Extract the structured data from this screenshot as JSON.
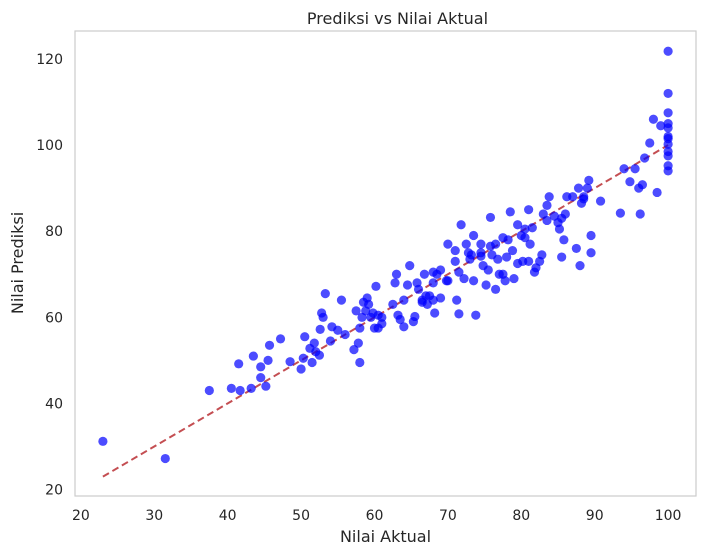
{
  "chart_data": {
    "type": "scatter",
    "title": "Prediksi vs Nilai Aktual",
    "xlabel": "Nilai Aktual",
    "ylabel": "Nilai Prediksi",
    "xlim": [
      19.2,
      103.8
    ],
    "ylim": [
      18.5,
      126.5
    ],
    "xticks": [
      20,
      30,
      40,
      50,
      60,
      70,
      80,
      90,
      100
    ],
    "yticks": [
      20,
      40,
      60,
      80,
      100,
      120
    ],
    "grid": false,
    "point_color": "#0000ff",
    "line_color": "#c44e52",
    "reference_line": {
      "x": [
        23,
        100
      ],
      "y": [
        23,
        100
      ],
      "style": "dashed"
    },
    "points": [
      [
        23,
        31.2
      ],
      [
        31.5,
        27.2
      ],
      [
        37.5,
        43
      ],
      [
        40.5,
        43.5
      ],
      [
        41.5,
        49.2
      ],
      [
        41.7,
        43
      ],
      [
        43.2,
        43.5
      ],
      [
        43.5,
        51
      ],
      [
        44.5,
        48.5
      ],
      [
        44.5,
        46
      ],
      [
        45.2,
        44
      ],
      [
        45.5,
        50
      ],
      [
        45.7,
        53.5
      ],
      [
        47.2,
        55
      ],
      [
        48.5,
        49.7
      ],
      [
        50,
        48
      ],
      [
        50.3,
        50.5
      ],
      [
        50.5,
        55.5
      ],
      [
        51.2,
        52.8
      ],
      [
        51.5,
        49.5
      ],
      [
        51.8,
        54
      ],
      [
        52,
        52
      ],
      [
        52.5,
        51.2
      ],
      [
        52.6,
        57.2
      ],
      [
        52.8,
        61
      ],
      [
        53,
        60
      ],
      [
        53.3,
        65.5
      ],
      [
        54,
        54.5
      ],
      [
        54.2,
        57.8
      ],
      [
        55,
        57
      ],
      [
        55.5,
        64
      ],
      [
        56,
        56
      ],
      [
        57.2,
        52.5
      ],
      [
        57.5,
        61.5
      ],
      [
        57.8,
        54
      ],
      [
        58,
        49.5
      ],
      [
        58,
        57.5
      ],
      [
        58.3,
        60
      ],
      [
        58.5,
        63.5
      ],
      [
        58.8,
        61.5
      ],
      [
        59,
        64.5
      ],
      [
        59.2,
        63
      ],
      [
        59.5,
        60
      ],
      [
        59.8,
        61
      ],
      [
        60,
        57.5
      ],
      [
        60.2,
        67.2
      ],
      [
        60.5,
        60.5
      ],
      [
        60.5,
        57.5
      ],
      [
        61,
        58.5
      ],
      [
        61,
        60
      ],
      [
        62.5,
        63
      ],
      [
        62.8,
        68
      ],
      [
        63,
        70
      ],
      [
        63.2,
        60.5
      ],
      [
        63.5,
        59.5
      ],
      [
        64,
        64
      ],
      [
        64,
        57.8
      ],
      [
        64.5,
        67.5
      ],
      [
        64.8,
        72
      ],
      [
        65.3,
        59
      ],
      [
        65.5,
        60.2
      ],
      [
        65.8,
        68
      ],
      [
        66,
        66.5
      ],
      [
        66.5,
        63.5
      ],
      [
        66.5,
        64
      ],
      [
        66.8,
        70
      ],
      [
        67,
        65
      ],
      [
        67.2,
        63
      ],
      [
        67.5,
        65
      ],
      [
        68,
        68
      ],
      [
        68,
        70.5
      ],
      [
        68,
        64
      ],
      [
        68.2,
        61
      ],
      [
        68.5,
        70
      ],
      [
        69,
        71
      ],
      [
        69,
        64.5
      ],
      [
        69.8,
        68.5
      ],
      [
        70,
        77
      ],
      [
        70,
        68.5
      ],
      [
        71,
        73
      ],
      [
        71,
        75.5
      ],
      [
        71.2,
        64
      ],
      [
        71.5,
        60.8
      ],
      [
        71.5,
        70.5
      ],
      [
        71.8,
        81.5
      ],
      [
        72.2,
        69
      ],
      [
        72.5,
        77
      ],
      [
        72.8,
        75
      ],
      [
        73,
        73.5
      ],
      [
        73.2,
        74.5
      ],
      [
        73.5,
        79
      ],
      [
        73.5,
        68.5
      ],
      [
        73.8,
        60.5
      ],
      [
        74.5,
        77
      ],
      [
        74.5,
        74.2
      ],
      [
        74.5,
        75
      ],
      [
        74.8,
        72
      ],
      [
        75.2,
        67.5
      ],
      [
        75.5,
        71
      ],
      [
        75.8,
        76.5
      ],
      [
        75.8,
        83.2
      ],
      [
        76,
        74.5
      ],
      [
        76.5,
        66.5
      ],
      [
        76.5,
        77
      ],
      [
        76.8,
        73.5
      ],
      [
        77,
        70
      ],
      [
        77.5,
        70
      ],
      [
        77.5,
        78.5
      ],
      [
        77.8,
        68.5
      ],
      [
        78,
        74
      ],
      [
        78.2,
        78
      ],
      [
        78.5,
        84.5
      ],
      [
        78.8,
        75.5
      ],
      [
        79,
        69
      ],
      [
        79.5,
        72.5
      ],
      [
        79.5,
        81.5
      ],
      [
        80,
        79
      ],
      [
        80.2,
        73
      ],
      [
        80.5,
        80.5
      ],
      [
        80.5,
        78.5
      ],
      [
        81,
        85
      ],
      [
        81,
        73
      ],
      [
        81.2,
        77
      ],
      [
        81.5,
        80.8
      ],
      [
        81.8,
        70.5
      ],
      [
        82,
        71.5
      ],
      [
        82.5,
        73
      ],
      [
        82.8,
        74.5
      ],
      [
        83,
        84
      ],
      [
        83.5,
        82.5
      ],
      [
        83.5,
        86
      ],
      [
        83.8,
        88
      ],
      [
        84.5,
        83.5
      ],
      [
        85,
        82
      ],
      [
        85.2,
        80.5
      ],
      [
        85.5,
        83
      ],
      [
        85.5,
        74
      ],
      [
        85.8,
        78
      ],
      [
        86,
        84
      ],
      [
        86.2,
        88
      ],
      [
        87,
        88
      ],
      [
        87.5,
        76
      ],
      [
        87.8,
        90
      ],
      [
        88,
        72
      ],
      [
        88.2,
        86.5
      ],
      [
        88.5,
        88
      ],
      [
        88.5,
        87.5
      ],
      [
        89,
        90
      ],
      [
        89.2,
        91.8
      ],
      [
        89.5,
        79
      ],
      [
        89.5,
        75
      ],
      [
        90.8,
        87
      ],
      [
        93.5,
        84.2
      ],
      [
        94,
        94.5
      ],
      [
        94.8,
        91.5
      ],
      [
        95.5,
        94.5
      ],
      [
        96,
        90
      ],
      [
        96.2,
        84
      ],
      [
        96.5,
        90.8
      ],
      [
        96.8,
        97
      ],
      [
        97.5,
        100.5
      ],
      [
        98,
        106
      ],
      [
        98.5,
        89
      ],
      [
        99,
        104.5
      ],
      [
        100,
        94
      ],
      [
        100,
        95.2
      ],
      [
        100,
        97.5
      ],
      [
        100,
        98.5
      ],
      [
        100,
        100.2
      ],
      [
        100,
        101.5
      ],
      [
        100,
        102
      ],
      [
        100,
        104
      ],
      [
        100,
        105
      ],
      [
        100,
        107.5
      ],
      [
        100,
        112
      ],
      [
        100,
        121.8
      ]
    ]
  }
}
